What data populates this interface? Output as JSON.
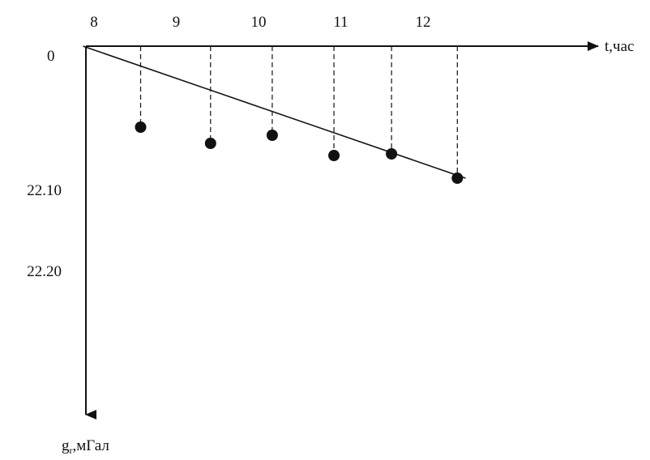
{
  "chart_data": {
    "type": "scatter",
    "xlabel": "t,час",
    "ylabel": "g",
    "ylabel_sub": "r",
    "ylabel_unit": ",мГал",
    "origin_label": "0",
    "x_ticks": [
      {
        "value": 8,
        "label": "8"
      },
      {
        "value": 9,
        "label": "9"
      },
      {
        "value": 10,
        "label": "10"
      },
      {
        "value": 11,
        "label": "11"
      },
      {
        "value": 12,
        "label": "12"
      }
    ],
    "y_ticks": [
      {
        "value": 22.1,
        "label": "22.10"
      },
      {
        "value": 22.2,
        "label": "22.20"
      }
    ],
    "points": [
      {
        "x": 9.0,
        "y": 22.1
      },
      {
        "x": 9.85,
        "y": 22.12
      },
      {
        "x": 10.6,
        "y": 22.11
      },
      {
        "x": 11.35,
        "y": 22.135
      },
      {
        "x": 12.05,
        "y": 22.133
      },
      {
        "x": 12.85,
        "y": 22.163
      }
    ],
    "trend_line": {
      "x1": 8.3,
      "y1": 22.0,
      "x2": 12.95,
      "y2": 22.163
    },
    "grid": false,
    "colors": {
      "ink": "#111111"
    }
  }
}
